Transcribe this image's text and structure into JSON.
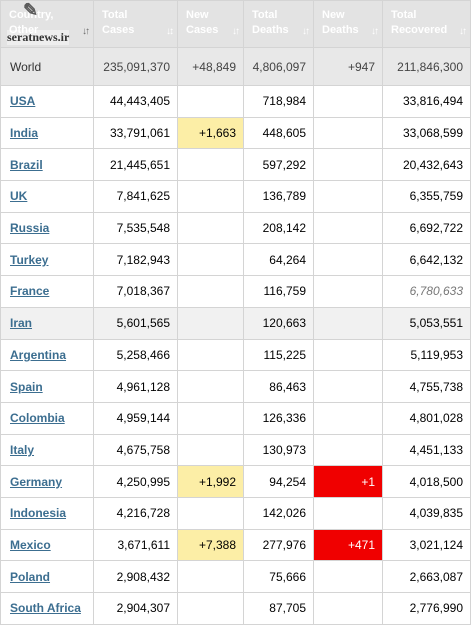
{
  "watermark": {
    "text": "seratnews.ir"
  },
  "headers": [
    {
      "line1": "Country,",
      "line2": "Other",
      "sort": "↓↑"
    },
    {
      "line1": "Total",
      "line2": "Cases",
      "sort": "↓↕"
    },
    {
      "line1": "New",
      "line2": "Cases",
      "sort": "↓↑"
    },
    {
      "line1": "Total",
      "line2": "Deaths",
      "sort": "↓↑"
    },
    {
      "line1": "New",
      "line2": "Deaths",
      "sort": "↓↑"
    },
    {
      "line1": "Total",
      "line2": "Recovered",
      "sort": "↓↑"
    }
  ],
  "world": {
    "country": "World",
    "total_cases": "235,091,370",
    "new_cases": "+48,849",
    "total_deaths": "4,806,097",
    "new_deaths": "+947",
    "total_recovered": "211,846,300"
  },
  "rows": [
    {
      "country": "USA",
      "total_cases": "44,443,405",
      "new_cases": "",
      "total_deaths": "718,984",
      "new_deaths": "",
      "total_recovered": "33,816,494"
    },
    {
      "country": "India",
      "total_cases": "33,791,061",
      "new_cases": "+1,663",
      "total_deaths": "448,605",
      "new_deaths": "",
      "total_recovered": "33,068,599"
    },
    {
      "country": "Brazil",
      "total_cases": "21,445,651",
      "new_cases": "",
      "total_deaths": "597,292",
      "new_deaths": "",
      "total_recovered": "20,432,643"
    },
    {
      "country": "UK",
      "total_cases": "7,841,625",
      "new_cases": "",
      "total_deaths": "136,789",
      "new_deaths": "",
      "total_recovered": "6,355,759"
    },
    {
      "country": "Russia",
      "total_cases": "7,535,548",
      "new_cases": "",
      "total_deaths": "208,142",
      "new_deaths": "",
      "total_recovered": "6,692,722"
    },
    {
      "country": "Turkey",
      "total_cases": "7,182,943",
      "new_cases": "",
      "total_deaths": "64,264",
      "new_deaths": "",
      "total_recovered": "6,642,132"
    },
    {
      "country": "France",
      "total_cases": "7,018,367",
      "new_cases": "",
      "total_deaths": "116,759",
      "new_deaths": "",
      "total_recovered": "6,780,633"
    },
    {
      "country": "Iran",
      "total_cases": "5,601,565",
      "new_cases": "",
      "total_deaths": "120,663",
      "new_deaths": "",
      "total_recovered": "5,053,551"
    },
    {
      "country": "Argentina",
      "total_cases": "5,258,466",
      "new_cases": "",
      "total_deaths": "115,225",
      "new_deaths": "",
      "total_recovered": "5,119,953"
    },
    {
      "country": "Spain",
      "total_cases": "4,961,128",
      "new_cases": "",
      "total_deaths": "86,463",
      "new_deaths": "",
      "total_recovered": "4,755,738"
    },
    {
      "country": "Colombia",
      "total_cases": "4,959,144",
      "new_cases": "",
      "total_deaths": "126,336",
      "new_deaths": "",
      "total_recovered": "4,801,028"
    },
    {
      "country": "Italy",
      "total_cases": "4,675,758",
      "new_cases": "",
      "total_deaths": "130,973",
      "new_deaths": "",
      "total_recovered": "4,451,133"
    },
    {
      "country": "Germany",
      "total_cases": "4,250,995",
      "new_cases": "+1,992",
      "total_deaths": "94,254",
      "new_deaths": "+1",
      "total_recovered": "4,018,500"
    },
    {
      "country": "Indonesia",
      "total_cases": "4,216,728",
      "new_cases": "",
      "total_deaths": "142,026",
      "new_deaths": "",
      "total_recovered": "4,039,835"
    },
    {
      "country": "Mexico",
      "total_cases": "3,671,611",
      "new_cases": "+7,388",
      "total_deaths": "277,976",
      "new_deaths": "+471",
      "total_recovered": "3,021,124"
    },
    {
      "country": "Poland",
      "total_cases": "2,908,432",
      "new_cases": "",
      "total_deaths": "75,666",
      "new_deaths": "",
      "total_recovered": "2,663,087"
    },
    {
      "country": "South Africa",
      "total_cases": "2,904,307",
      "new_cases": "",
      "total_deaths": "87,705",
      "new_deaths": "",
      "total_recovered": "2,776,990"
    }
  ],
  "colors": {
    "new_cases_bg": "#fceea6",
    "new_deaths_bg": "#f00000",
    "link": "#3c6e90",
    "header_bg": "#e3e3e3"
  }
}
